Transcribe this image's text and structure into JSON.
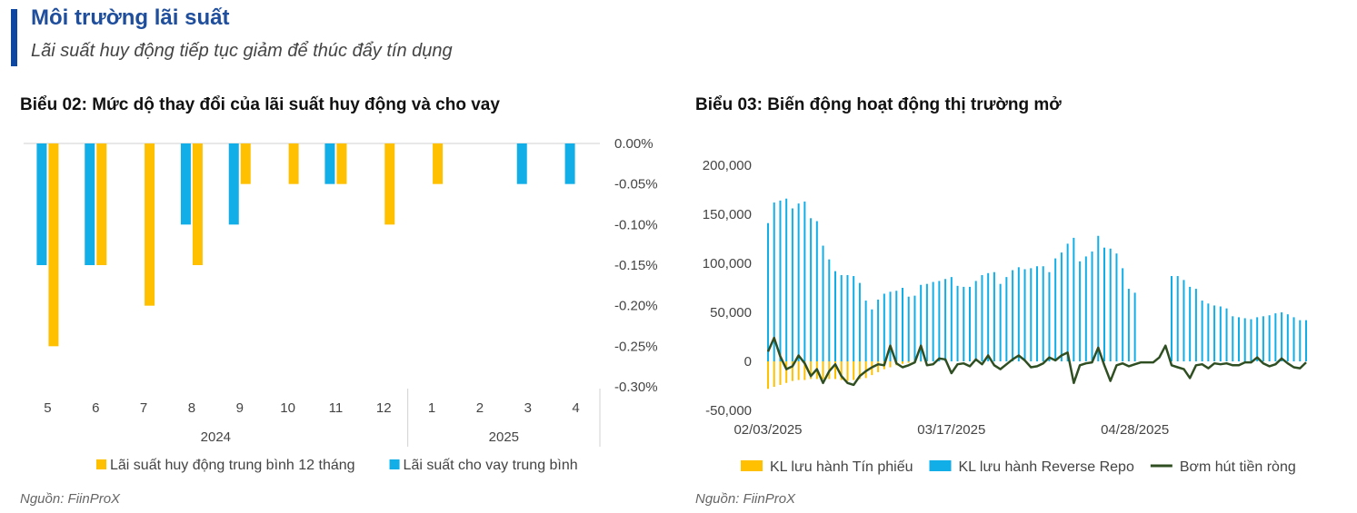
{
  "header": {
    "title": "Môi trường lãi suất",
    "subtitle": "Lãi suất huy động tiếp tục giảm để thúc đẩy tín dụng"
  },
  "colors": {
    "accent": "#0d47a1",
    "title": "#1f4e9c",
    "yellow": "#ffc000",
    "blue": "#12aee8",
    "green": "#2f4f22"
  },
  "chart_data": [
    {
      "type": "bar",
      "title": "Biểu 02: Mức dộ thay đổi của lãi suất huy động và cho vay",
      "categories": [
        "5",
        "6",
        "7",
        "8",
        "9",
        "10",
        "11",
        "12",
        "1",
        "2",
        "3",
        "4"
      ],
      "groups": [
        {
          "label": "2024",
          "count": 8
        },
        {
          "label": "2025",
          "count": 4
        }
      ],
      "series": [
        {
          "name": "Lãi suất cho vay trung bình",
          "color": "#12aee8",
          "values": [
            -0.15,
            -0.15,
            0,
            -0.1,
            -0.1,
            0,
            -0.05,
            0,
            0,
            0,
            -0.05,
            -0.05
          ]
        },
        {
          "name": "Lãi suất huy động trung bình 12 tháng",
          "color": "#ffc000",
          "values": [
            -0.25,
            -0.15,
            -0.2,
            -0.15,
            -0.05,
            -0.05,
            -0.05,
            -0.1,
            -0.05,
            0,
            0,
            0
          ]
        }
      ],
      "legend_order": [
        "Lãi suất huy động trung bình 12 tháng",
        "Lãi suất cho vay trung bình"
      ],
      "ylim": [
        -0.3,
        0
      ],
      "y_ticks": [
        0,
        -0.05,
        -0.1,
        -0.15,
        -0.2,
        -0.25,
        -0.3
      ],
      "y_tick_labels": [
        "0.00%",
        "-0.05%",
        "-0.10%",
        "-0.15%",
        "-0.20%",
        "-0.25%",
        "-0.30%"
      ],
      "y_axis_side": "right",
      "legend": "bottom",
      "source": "Nguồn: FiinProX"
    },
    {
      "type": "bar",
      "title": "Biến động hoạt động thị trường mở",
      "title_prefix": "Biểu 03: ",
      "x_labels": [
        "02/03/2025",
        "03/17/2025",
        "04/28/2025"
      ],
      "x_label_index": [
        0,
        30,
        60
      ],
      "ylim": [
        -50000,
        200000
      ],
      "y_ticks": [
        200000,
        150000,
        100000,
        50000,
        0,
        -50000
      ],
      "y_tick_labels": [
        "200,000",
        "150,000",
        "100,000",
        "50,000",
        "0",
        "-50,000"
      ],
      "series": [
        {
          "name": "KL lưu hành Tín phiếu",
          "color": "#ffc000",
          "type": "bar",
          "values": [
            -28000,
            -26000,
            -24000,
            -22000,
            -20000,
            -19000,
            -19000,
            -18000,
            -18000,
            -18000,
            -18000,
            -18000,
            -19000,
            -20000,
            -19000,
            -18000,
            -17000,
            -14000,
            -11000,
            -8000,
            -6000,
            -4000,
            -2500,
            -1500,
            -700,
            -300,
            0,
            0,
            0,
            0,
            0,
            0,
            0,
            0,
            0,
            0,
            0,
            0,
            0,
            0,
            0,
            0,
            0,
            0,
            0,
            0,
            0,
            0,
            0,
            0,
            0,
            0,
            0,
            0,
            0,
            0,
            0,
            0,
            0,
            0,
            0,
            0,
            0,
            0,
            0,
            0,
            0,
            0,
            0,
            0,
            0,
            0,
            0,
            0,
            0,
            0,
            0,
            0,
            0,
            0,
            0,
            0,
            0,
            0,
            0,
            0,
            0,
            0,
            0
          ]
        },
        {
          "name": "KL lưu hành Reverse Repo",
          "color": "#12aee8",
          "type": "bar",
          "values": [
            141000,
            162000,
            164000,
            166000,
            156000,
            161000,
            163000,
            146000,
            143000,
            118000,
            104000,
            92000,
            88000,
            88000,
            87000,
            80000,
            62000,
            53000,
            63000,
            69000,
            71000,
            72000,
            75000,
            66000,
            67000,
            78000,
            79000,
            81000,
            82000,
            84000,
            86000,
            77000,
            76000,
            76000,
            82000,
            88000,
            90000,
            91000,
            79000,
            86000,
            93000,
            96000,
            94000,
            95000,
            97000,
            97000,
            91000,
            105000,
            111000,
            120000,
            126000,
            102000,
            107000,
            112000,
            128000,
            116000,
            115000,
            110000,
            95000,
            74000,
            70000,
            0,
            0,
            0,
            0,
            0,
            87000,
            87000,
            83000,
            76000,
            74000,
            62000,
            59000,
            57000,
            56000,
            54000,
            46000,
            45000,
            44000,
            43000,
            45000,
            46000,
            47000,
            49000,
            50000,
            48000,
            45000,
            42000,
            42000
          ]
        },
        {
          "name": "Bơm hút tiền ròng",
          "color": "#2f4f22",
          "type": "line",
          "values": [
            10000,
            24000,
            5000,
            -8000,
            -5000,
            6000,
            -2000,
            -15000,
            -8000,
            -22000,
            -10000,
            -3000,
            -15000,
            -22000,
            -24000,
            -15000,
            -10000,
            -6000,
            -3000,
            -4000,
            16000,
            -2000,
            -6000,
            -4000,
            -1000,
            16000,
            -4000,
            -3000,
            3000,
            2000,
            -12000,
            -3000,
            -2000,
            -5000,
            2000,
            -3000,
            6000,
            -4000,
            -8000,
            -3000,
            2000,
            6000,
            1000,
            -6000,
            -5000,
            -2000,
            4000,
            1000,
            6000,
            9000,
            -22000,
            -4000,
            -2000,
            -1000,
            14000,
            -4000,
            -20000,
            -4000,
            -2000,
            -5000,
            -3000,
            -1000,
            -1000,
            -1000,
            4000,
            16000,
            -4000,
            -6000,
            -8000,
            -17000,
            -4000,
            -3000,
            -7000,
            -2000,
            -3000,
            -2000,
            -4000,
            -4000,
            -1000,
            -1000,
            4000,
            -2000,
            -5000,
            -3000,
            3000,
            -2000,
            -6000,
            -7000,
            -1000
          ]
        }
      ],
      "legend": "bottom",
      "source": "Nguồn: FiinProX"
    }
  ]
}
